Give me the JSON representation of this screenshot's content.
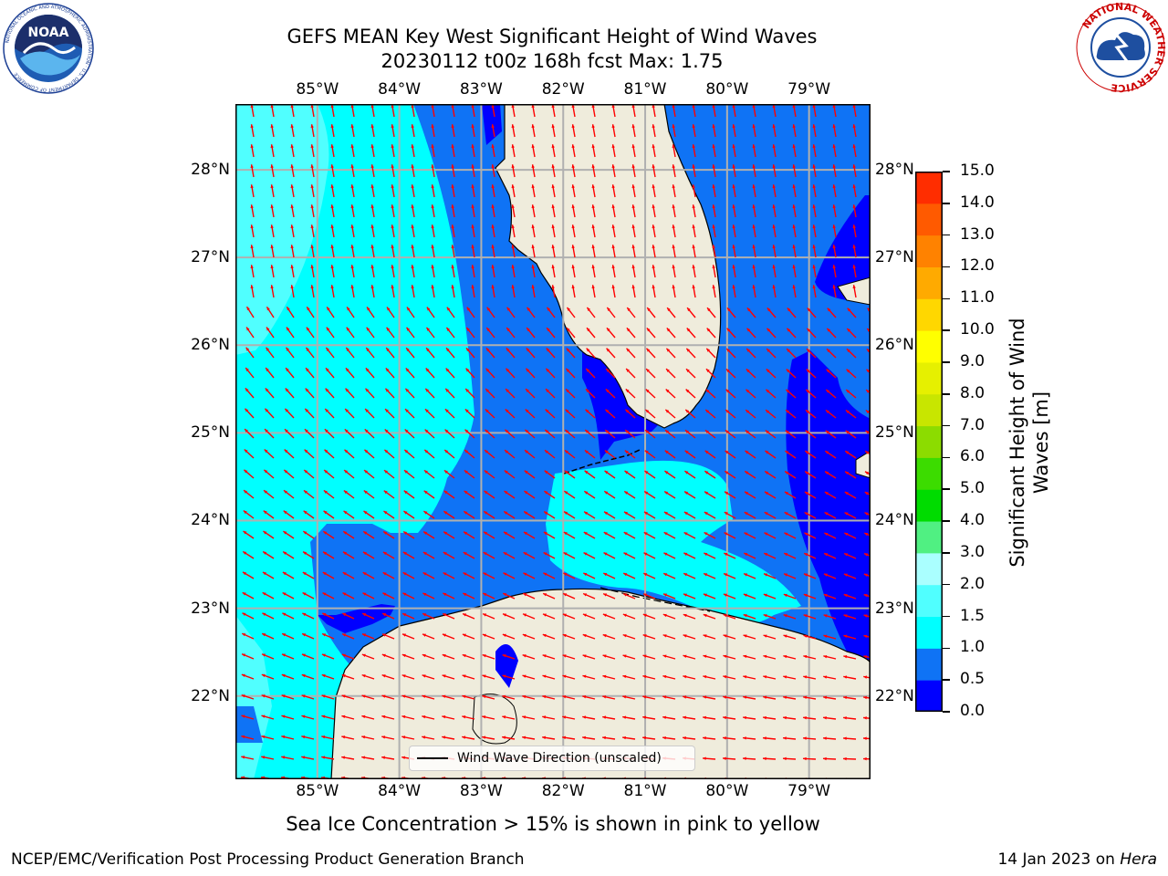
{
  "header": {
    "title_line1": "GEFS MEAN Key West Significant Height of Wind Waves",
    "title_line2": "20230112 t00z 168h fcst   Max: 1.75"
  },
  "logos": {
    "left_name": "NOAA",
    "left_ring_text": "NATIONAL OCEANIC AND ATMOSPHERIC ADMINISTRATION · U.S. DEPARTMENT OF COMMERCE",
    "right_ring_text": "NATIONAL WEATHER SERVICE"
  },
  "map": {
    "lon_labels": [
      "85°W",
      "84°W",
      "83°W",
      "82°W",
      "81°W",
      "80°W",
      "79°W"
    ],
    "lat_labels": [
      "28°N",
      "27°N",
      "26°N",
      "25°N",
      "24°N",
      "23°N",
      "22°N"
    ],
    "lon_values": [
      -85,
      -84,
      -83,
      -82,
      -81,
      -80,
      -79
    ],
    "lat_values": [
      28,
      27,
      26,
      25,
      24,
      23,
      22
    ],
    "extent": {
      "lon": [
        -86.0,
        -78.25
      ],
      "lat": [
        21.05,
        28.75
      ]
    },
    "gridlines": true,
    "arrow_color": "#ff0000",
    "land_color": "#efecdc",
    "legend_label": "Wind Wave Direction (unscaled)"
  },
  "colorbar": {
    "title": "Significant Height of Wind Waves [m]",
    "ticks": [
      "15.0",
      "14.0",
      "13.0",
      "12.0",
      "11.0",
      "10.0",
      "9.0",
      "8.0",
      "7.0",
      "6.0",
      "5.0",
      "4.0",
      "3.0",
      "2.0",
      "1.5",
      "1.0",
      "0.5",
      "0.0"
    ],
    "colors": [
      "#0000ff",
      "#0f73f5",
      "#00ffff",
      "#50ffff",
      "#aaffff",
      "#50f082",
      "#00dc00",
      "#3cdc00",
      "#8cdc00",
      "#c8e600",
      "#e6f000",
      "#ffff00",
      "#ffd700",
      "#ffaa00",
      "#ff8200",
      "#ff5a00",
      "#ff2d00"
    ],
    "max_label": "15.0"
  },
  "footer": {
    "ice_note": "Sea Ice Concentration > 15% is shown in pink to yellow",
    "credit": "NCEP/EMC/Verification Post Processing Product Generation Branch",
    "date_prefix": "14 Jan 2023 on",
    "machine": "Hera"
  }
}
